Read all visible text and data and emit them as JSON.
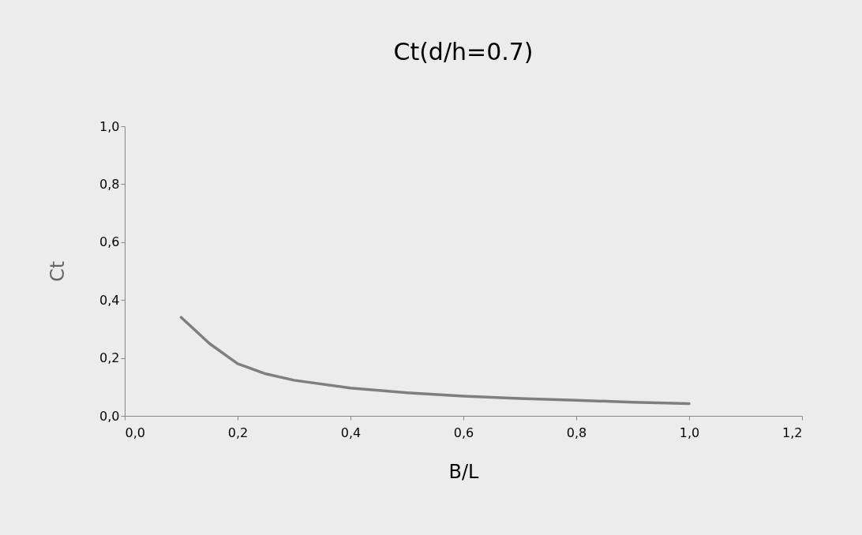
{
  "chart_data": {
    "type": "line",
    "title": "Ct(d/h=0.7)",
    "xlabel": "B/L",
    "ylabel": "Ct",
    "x": [
      0.1,
      0.15,
      0.2,
      0.25,
      0.3,
      0.4,
      0.5,
      0.6,
      0.7,
      0.8,
      0.9,
      1.0
    ],
    "series": [
      {
        "color": "#7f7f7f",
        "values": [
          0.34,
          0.25,
          0.18,
          0.145,
          0.123,
          0.096,
          0.08,
          0.068,
          0.06,
          0.054,
          0.047,
          0.042
        ]
      }
    ],
    "xlim": [
      0,
      1.2
    ],
    "xticks": [
      {
        "value": 0,
        "label": "0,0"
      },
      {
        "value": 0.2,
        "label": "0,2"
      },
      {
        "value": 0.4,
        "label": "0,4"
      },
      {
        "value": 0.6,
        "label": "0,6"
      },
      {
        "value": 0.8,
        "label": "0,8"
      },
      {
        "value": 1.0,
        "label": "1,0"
      },
      {
        "value": 1.2,
        "label": "1,2"
      }
    ],
    "ylim": [
      0,
      1
    ],
    "yticks": [
      {
        "value": 0,
        "label": "0,0"
      },
      {
        "value": 0.2,
        "label": "0,2"
      },
      {
        "value": 0.4,
        "label": "0,4"
      },
      {
        "value": 0.6,
        "label": "0,6"
      },
      {
        "value": 0.8,
        "label": "0,8"
      },
      {
        "value": 1.0,
        "label": "1,0"
      }
    ],
    "grid": false,
    "legend": false,
    "marker": "none",
    "line_style": "solid"
  }
}
